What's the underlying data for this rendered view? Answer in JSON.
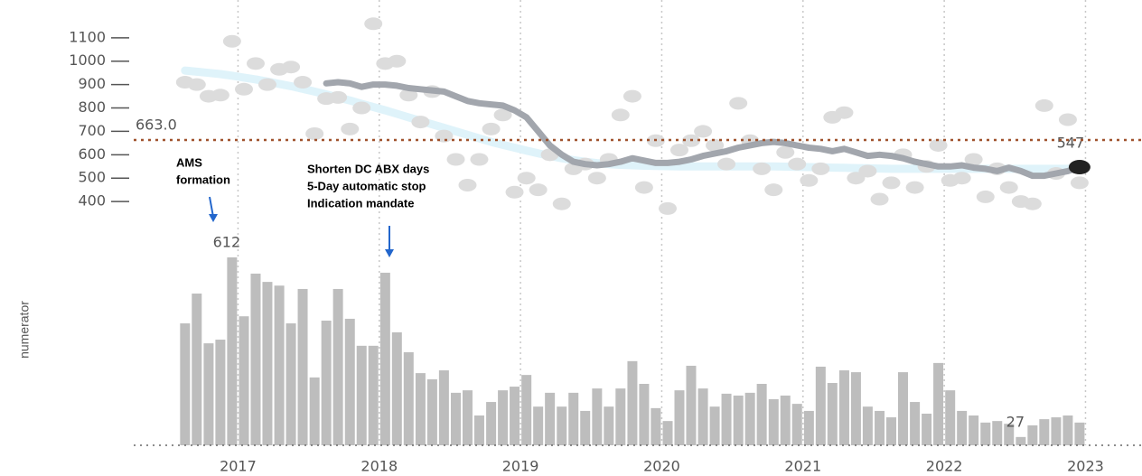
{
  "chart_data": [
    {
      "type": "scatter",
      "x": [
        2016.625,
        2016.708,
        2016.792,
        2016.875,
        2016.958,
        2017.042,
        2017.125,
        2017.208,
        2017.292,
        2017.375,
        2017.458,
        2017.542,
        2017.625,
        2017.708,
        2017.792,
        2017.875,
        2017.958,
        2018.042,
        2018.125,
        2018.208,
        2018.292,
        2018.375,
        2018.458,
        2018.542,
        2018.625,
        2018.708,
        2018.792,
        2018.875,
        2018.958,
        2019.042,
        2019.125,
        2019.208,
        2019.292,
        2019.375,
        2019.458,
        2019.542,
        2019.625,
        2019.708,
        2019.792,
        2019.875,
        2019.958,
        2020.042,
        2020.125,
        2020.208,
        2020.292,
        2020.375,
        2020.458,
        2020.542,
        2020.625,
        2020.708,
        2020.792,
        2020.875,
        2020.958,
        2021.042,
        2021.125,
        2021.208,
        2021.292,
        2021.375,
        2021.458,
        2021.542,
        2021.625,
        2021.708,
        2021.792,
        2021.875,
        2021.958,
        2022.042,
        2022.125,
        2022.208,
        2022.292,
        2022.375,
        2022.458,
        2022.542,
        2022.625,
        2022.708,
        2022.792,
        2022.875,
        2022.958
      ],
      "xlim": [
        2016.3,
        2023.4
      ],
      "ylim": [
        300,
        1250
      ],
      "yticks": [
        400,
        500,
        600,
        700,
        800,
        900,
        1000,
        1100
      ],
      "series": [
        {
          "style": "trend",
          "color": "#dff3fa",
          "values": [
            960,
            955,
            950,
            945,
            938,
            930,
            922,
            913,
            903,
            893,
            882,
            870,
            858,
            845,
            832,
            818,
            804,
            790,
            775,
            760,
            745,
            730,
            715,
            700,
            685,
            670,
            655,
            642,
            630,
            618,
            606,
            595,
            585,
            577,
            570,
            564,
            560,
            557,
            555,
            553,
            552,
            551,
            550,
            550,
            550,
            550,
            550,
            550,
            550,
            550,
            550,
            549,
            548,
            547,
            546,
            545,
            544,
            543,
            542,
            541,
            540,
            540,
            540,
            540,
            540,
            540,
            540,
            540,
            540,
            540,
            540,
            540,
            540,
            540,
            540,
            540,
            540
          ]
        },
        {
          "style": "points",
          "color": "#dcdcdc",
          "values": [
            910,
            900,
            850,
            855,
            1085,
            880,
            990,
            900,
            965,
            975,
            910,
            690,
            840,
            845,
            710,
            800,
            1160,
            990,
            1000,
            855,
            740,
            870,
            680,
            580,
            470,
            580,
            710,
            770,
            440,
            500,
            450,
            600,
            390,
            540,
            560,
            500,
            580,
            770,
            850,
            460,
            660,
            370,
            620,
            660,
            700,
            640,
            560,
            820,
            660,
            540,
            450,
            610,
            560,
            490,
            540,
            760,
            780,
            500,
            530,
            410,
            480,
            600,
            460,
            550,
            640,
            490,
            500,
            580,
            420,
            540,
            460,
            400,
            390,
            810,
            520,
            750,
            480
          ]
        },
        {
          "style": "line",
          "color": "#a2a6ad",
          "end_label": true,
          "end_color": "#222",
          "values": [
            null,
            null,
            null,
            null,
            null,
            null,
            null,
            null,
            null,
            null,
            null,
            null,
            905,
            910,
            905,
            890,
            900,
            900,
            895,
            885,
            880,
            875,
            870,
            850,
            830,
            820,
            815,
            810,
            790,
            760,
            700,
            640,
            600,
            570,
            560,
            555,
            560,
            570,
            585,
            575,
            565,
            565,
            570,
            580,
            595,
            605,
            615,
            630,
            640,
            650,
            655,
            650,
            640,
            630,
            625,
            615,
            625,
            610,
            595,
            600,
            595,
            585,
            570,
            560,
            550,
            550,
            555,
            545,
            540,
            530,
            545,
            530,
            510,
            510,
            520,
            530,
            547
          ]
        }
      ],
      "reference": {
        "value": 663,
        "label": "663.0",
        "color": "#a0522d"
      },
      "annotations": [
        {
          "lines": [
            "AMS",
            "formation"
          ],
          "color": "#2266cc"
        },
        {
          "lines": [
            "Shorten DC ABX days",
            "5-Day automatic stop",
            "Indication mandate"
          ],
          "color": "#2266cc"
        }
      ]
    },
    {
      "type": "bar",
      "x": [
        2016.625,
        2016.708,
        2016.792,
        2016.875,
        2016.958,
        2017.042,
        2017.125,
        2017.208,
        2017.292,
        2017.375,
        2017.458,
        2017.542,
        2017.625,
        2017.708,
        2017.792,
        2017.875,
        2017.958,
        2018.042,
        2018.125,
        2018.208,
        2018.292,
        2018.375,
        2018.458,
        2018.542,
        2018.625,
        2018.708,
        2018.792,
        2018.875,
        2018.958,
        2019.042,
        2019.125,
        2019.208,
        2019.292,
        2019.375,
        2019.458,
        2019.542,
        2019.625,
        2019.708,
        2019.792,
        2019.875,
        2019.958,
        2020.042,
        2020.125,
        2020.208,
        2020.292,
        2020.375,
        2020.458,
        2020.542,
        2020.625,
        2020.708,
        2020.792,
        2020.875,
        2020.958,
        2021.042,
        2021.125,
        2021.208,
        2021.292,
        2021.375,
        2021.458,
        2021.542,
        2021.625,
        2021.708,
        2021.792,
        2021.875,
        2021.958,
        2022.042,
        2022.125,
        2022.208,
        2022.292,
        2022.375,
        2022.458,
        2022.542,
        2022.625,
        2022.708,
        2022.792,
        2022.875,
        2022.958
      ],
      "values": [
        397,
        494,
        332,
        344,
        612,
        420,
        559,
        532,
        520,
        397,
        509,
        221,
        406,
        509,
        412,
        324,
        324,
        562,
        368,
        303,
        235,
        215,
        244,
        171,
        179,
        97,
        141,
        179,
        191,
        229,
        126,
        171,
        126,
        171,
        112,
        185,
        126,
        185,
        274,
        200,
        121,
        79,
        179,
        259,
        185,
        126,
        168,
        162,
        171,
        200,
        150,
        162,
        135,
        112,
        256,
        203,
        244,
        238,
        126,
        112,
        91,
        238,
        141,
        103,
        268,
        179,
        112,
        97,
        74,
        79,
        70,
        27,
        65,
        85,
        91,
        97,
        74
      ],
      "value_labels": [
        null,
        null,
        null,
        null,
        "612",
        null,
        null,
        null,
        null,
        null,
        null,
        null,
        null,
        null,
        null,
        null,
        null,
        null,
        null,
        null,
        null,
        null,
        null,
        null,
        null,
        null,
        null,
        null,
        null,
        null,
        null,
        null,
        null,
        null,
        null,
        null,
        null,
        null,
        null,
        null,
        null,
        null,
        null,
        null,
        null,
        null,
        null,
        null,
        null,
        null,
        null,
        null,
        null,
        null,
        null,
        null,
        null,
        null,
        null,
        null,
        null,
        null,
        null,
        null,
        null,
        null,
        null,
        null,
        null,
        null,
        null,
        "27",
        null,
        null,
        null,
        null,
        null
      ],
      "color": "#bdbdbd",
      "y_label": "numerator",
      "xlim": [
        2016.3,
        2023.4
      ],
      "ylim": [
        0,
        700
      ],
      "xticks": [
        2017,
        2018,
        2019,
        2020,
        2021,
        2022,
        2023
      ],
      "grid": true
    }
  ]
}
